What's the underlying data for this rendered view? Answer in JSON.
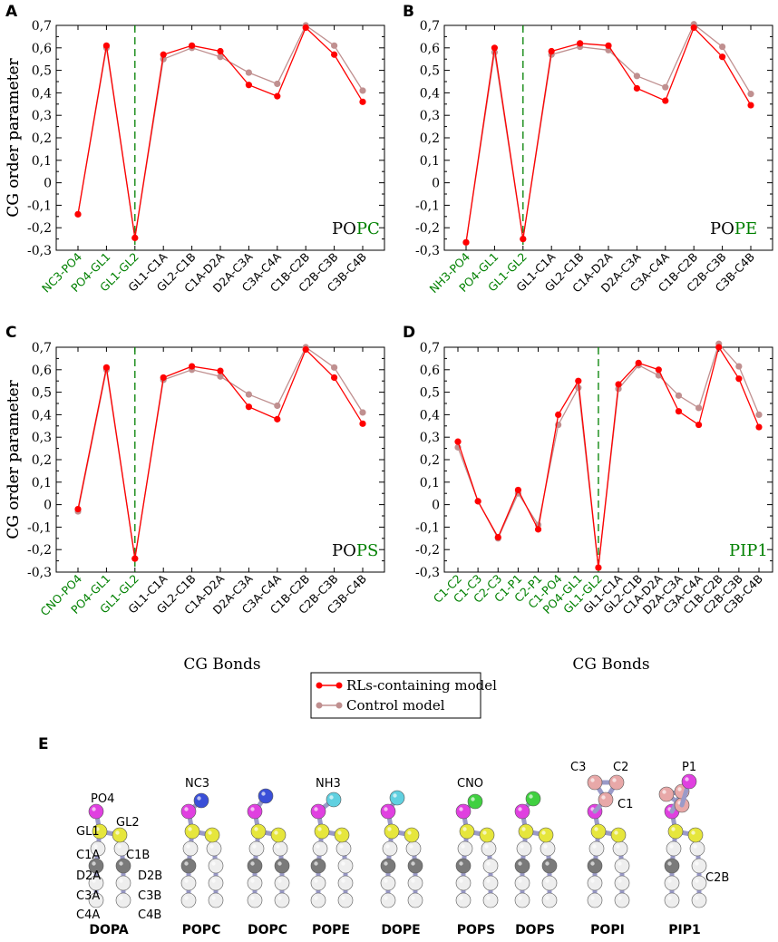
{
  "y_axis_label": "CG order parameter",
  "x_axis_label": "CG Bonds",
  "legend": {
    "items": [
      {
        "label": "RLs-containing model",
        "color": "#ff0000"
      },
      {
        "label": "Control model",
        "color": "#c09090"
      }
    ]
  },
  "colors": {
    "highlight": "#008000",
    "primary": "#ff0000",
    "control": "#c09090",
    "divider": "#008000"
  },
  "chart_data": [
    {
      "panel": "A",
      "type": "line",
      "title_prefix": "PO",
      "title_suffix": "PC",
      "ylim": [
        -0.3,
        0.7
      ],
      "yticks": [
        "0,7",
        "0,6",
        "0,5",
        "0,4",
        "0,3",
        "0,2",
        "0,1",
        "0",
        "-0,1",
        "-0,2",
        "-0,3"
      ],
      "categories": [
        "NC3-PO4",
        "PO4-GL1",
        "GL1-GL2",
        "GL1-C1A",
        "GL2-C1B",
        "C1A-D2A",
        "D2A-C3A",
        "C3A-C4A",
        "C1B-C2B",
        "C2B-C3B",
        "C3B-C4B"
      ],
      "highlighted_count": 3,
      "divider_after_index": 2,
      "series": [
        {
          "name": "RLs-containing model",
          "values": [
            -0.14,
            0.61,
            -0.245,
            0.57,
            0.61,
            0.585,
            0.435,
            0.385,
            0.69,
            0.57,
            0.36
          ]
        },
        {
          "name": "Control model",
          "values": [
            -0.14,
            0.6,
            -0.245,
            0.55,
            0.6,
            0.56,
            0.49,
            0.44,
            0.7,
            0.61,
            0.41
          ]
        }
      ]
    },
    {
      "panel": "B",
      "type": "line",
      "title_prefix": "PO",
      "title_suffix": "PE",
      "ylim": [
        -0.3,
        0.7
      ],
      "yticks": [
        "0,7",
        "0,6",
        "0,5",
        "0,4",
        "0,3",
        "0,2",
        "0,1",
        "0",
        "-0,1",
        "-0,2",
        "-0,3"
      ],
      "categories": [
        "NH3-PO4",
        "PO4-GL1",
        "GL1-GL2",
        "GL1-C1A",
        "GL2-C1B",
        "C1A-D2A",
        "D2A-C3A",
        "C3A-C4A",
        "C1B-C2B",
        "C2B-C3B",
        "C3B-C4B"
      ],
      "highlighted_count": 3,
      "divider_after_index": 2,
      "series": [
        {
          "name": "RLs-containing model",
          "values": [
            -0.265,
            0.6,
            -0.25,
            0.585,
            0.62,
            0.61,
            0.42,
            0.365,
            0.69,
            0.56,
            0.345
          ]
        },
        {
          "name": "Control model",
          "values": [
            -0.265,
            0.58,
            -0.25,
            0.57,
            0.605,
            0.59,
            0.475,
            0.425,
            0.705,
            0.605,
            0.395
          ]
        }
      ]
    },
    {
      "panel": "C",
      "type": "line",
      "title_prefix": "PO",
      "title_suffix": "PS",
      "ylim": [
        -0.3,
        0.7
      ],
      "yticks": [
        "0,7",
        "0,6",
        "0,5",
        "0,4",
        "0,3",
        "0,2",
        "0,1",
        "0",
        "-0,1",
        "-0,2",
        "-0,3"
      ],
      "categories": [
        "CNO-PO4",
        "PO4-GL1",
        "GL1-GL2",
        "GL1-C1A",
        "GL2-C1B",
        "C1A-D2A",
        "D2A-C3A",
        "C3A-C4A",
        "C1B-C2B",
        "C2B-C3B",
        "C3B-C4B"
      ],
      "highlighted_count": 3,
      "divider_after_index": 2,
      "series": [
        {
          "name": "RLs-containing model",
          "values": [
            -0.02,
            0.61,
            -0.24,
            0.565,
            0.615,
            0.595,
            0.435,
            0.38,
            0.69,
            0.565,
            0.36
          ]
        },
        {
          "name": "Control model",
          "values": [
            -0.03,
            0.6,
            -0.24,
            0.555,
            0.6,
            0.57,
            0.49,
            0.44,
            0.7,
            0.61,
            0.41
          ]
        }
      ]
    },
    {
      "panel": "D",
      "type": "line",
      "title_prefix": "",
      "title_suffix": "PIP1",
      "ylim": [
        -0.3,
        0.7
      ],
      "yticks": [
        "0,7",
        "0,6",
        "0,5",
        "0,4",
        "0,3",
        "0,2",
        "0,1",
        "0",
        "-0,1",
        "-0,2",
        "-0,3"
      ],
      "categories": [
        "C1-C2",
        "C1-C3",
        "C2-C3",
        "C1-P1",
        "C2-P1",
        "C1-PO4",
        "PO4-GL1",
        "GL1-GL2",
        "GL1-C1A",
        "GL2-C1B",
        "C1A-D2A",
        "D2A-C3A",
        "C3A-C4A",
        "C1B-C2B",
        "C2B-C3B",
        "C3B-C4B"
      ],
      "highlighted_count": 8,
      "divider_after_index": 7,
      "series": [
        {
          "name": "RLs-containing model",
          "values": [
            0.28,
            0.015,
            -0.145,
            0.065,
            -0.11,
            0.4,
            0.55,
            -0.28,
            0.535,
            0.63,
            0.6,
            0.415,
            0.355,
            0.7,
            0.56,
            0.345
          ]
        },
        {
          "name": "Control model",
          "values": [
            0.255,
            0.015,
            -0.15,
            0.05,
            -0.09,
            0.355,
            0.52,
            -0.28,
            0.515,
            0.62,
            0.575,
            0.485,
            0.43,
            0.715,
            0.615,
            0.4
          ]
        }
      ]
    }
  ],
  "panel_e": {
    "letter": "E",
    "molecules": [
      {
        "name": "DOPA",
        "bead_labels": [
          "PO4",
          "GL1",
          "GL2",
          "C1A",
          "C1B",
          "D2A",
          "D2B",
          "C3A",
          "C3B",
          "C4A",
          "C4B"
        ]
      },
      {
        "name": "POPC",
        "bead_labels": [
          "NC3"
        ]
      },
      {
        "name": "DOPC",
        "bead_labels": []
      },
      {
        "name": "POPE",
        "bead_labels": [
          "NH3"
        ]
      },
      {
        "name": "DOPE",
        "bead_labels": []
      },
      {
        "name": "POPS",
        "bead_labels": [
          "CNO"
        ]
      },
      {
        "name": "DOPS",
        "bead_labels": []
      },
      {
        "name": "POPI",
        "bead_labels": [
          "C3",
          "C2",
          "C1"
        ]
      },
      {
        "name": "PIP1",
        "bead_labels": [
          "P1",
          "C2B"
        ]
      }
    ]
  }
}
